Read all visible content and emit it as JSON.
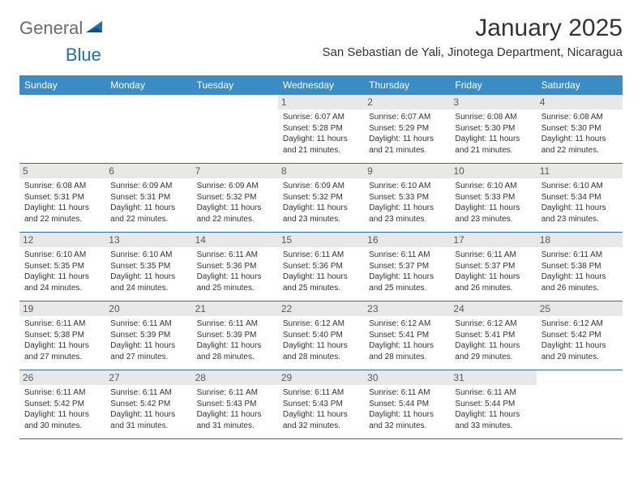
{
  "brand": {
    "part1": "General",
    "part2": "Blue"
  },
  "title": "January 2025",
  "location": "San Sebastian de Yali, Jinotega Department, Nicaragua",
  "dow": [
    "Sunday",
    "Monday",
    "Tuesday",
    "Wednesday",
    "Thursday",
    "Friday",
    "Saturday"
  ],
  "colors": {
    "header_bg": "#3b8bc4",
    "header_text": "#ffffff",
    "daynum_bg": "#e8e8e8",
    "rule": "#2f6ea0",
    "brand_gray": "#6b6b6b",
    "brand_blue": "#1f6fb2"
  },
  "weeks": [
    [
      null,
      null,
      null,
      {
        "n": "1",
        "sr": "6:07 AM",
        "ss": "5:28 PM",
        "dl": "11 hours and 21 minutes."
      },
      {
        "n": "2",
        "sr": "6:07 AM",
        "ss": "5:29 PM",
        "dl": "11 hours and 21 minutes."
      },
      {
        "n": "3",
        "sr": "6:08 AM",
        "ss": "5:30 PM",
        "dl": "11 hours and 21 minutes."
      },
      {
        "n": "4",
        "sr": "6:08 AM",
        "ss": "5:30 PM",
        "dl": "11 hours and 22 minutes."
      }
    ],
    [
      {
        "n": "5",
        "sr": "6:08 AM",
        "ss": "5:31 PM",
        "dl": "11 hours and 22 minutes."
      },
      {
        "n": "6",
        "sr": "6:09 AM",
        "ss": "5:31 PM",
        "dl": "11 hours and 22 minutes."
      },
      {
        "n": "7",
        "sr": "6:09 AM",
        "ss": "5:32 PM",
        "dl": "11 hours and 22 minutes."
      },
      {
        "n": "8",
        "sr": "6:09 AM",
        "ss": "5:32 PM",
        "dl": "11 hours and 23 minutes."
      },
      {
        "n": "9",
        "sr": "6:10 AM",
        "ss": "5:33 PM",
        "dl": "11 hours and 23 minutes."
      },
      {
        "n": "10",
        "sr": "6:10 AM",
        "ss": "5:33 PM",
        "dl": "11 hours and 23 minutes."
      },
      {
        "n": "11",
        "sr": "6:10 AM",
        "ss": "5:34 PM",
        "dl": "11 hours and 23 minutes."
      }
    ],
    [
      {
        "n": "12",
        "sr": "6:10 AM",
        "ss": "5:35 PM",
        "dl": "11 hours and 24 minutes."
      },
      {
        "n": "13",
        "sr": "6:10 AM",
        "ss": "5:35 PM",
        "dl": "11 hours and 24 minutes."
      },
      {
        "n": "14",
        "sr": "6:11 AM",
        "ss": "5:36 PM",
        "dl": "11 hours and 25 minutes."
      },
      {
        "n": "15",
        "sr": "6:11 AM",
        "ss": "5:36 PM",
        "dl": "11 hours and 25 minutes."
      },
      {
        "n": "16",
        "sr": "6:11 AM",
        "ss": "5:37 PM",
        "dl": "11 hours and 25 minutes."
      },
      {
        "n": "17",
        "sr": "6:11 AM",
        "ss": "5:37 PM",
        "dl": "11 hours and 26 minutes."
      },
      {
        "n": "18",
        "sr": "6:11 AM",
        "ss": "5:38 PM",
        "dl": "11 hours and 26 minutes."
      }
    ],
    [
      {
        "n": "19",
        "sr": "6:11 AM",
        "ss": "5:38 PM",
        "dl": "11 hours and 27 minutes."
      },
      {
        "n": "20",
        "sr": "6:11 AM",
        "ss": "5:39 PM",
        "dl": "11 hours and 27 minutes."
      },
      {
        "n": "21",
        "sr": "6:11 AM",
        "ss": "5:39 PM",
        "dl": "11 hours and 28 minutes."
      },
      {
        "n": "22",
        "sr": "6:12 AM",
        "ss": "5:40 PM",
        "dl": "11 hours and 28 minutes."
      },
      {
        "n": "23",
        "sr": "6:12 AM",
        "ss": "5:41 PM",
        "dl": "11 hours and 28 minutes."
      },
      {
        "n": "24",
        "sr": "6:12 AM",
        "ss": "5:41 PM",
        "dl": "11 hours and 29 minutes."
      },
      {
        "n": "25",
        "sr": "6:12 AM",
        "ss": "5:42 PM",
        "dl": "11 hours and 29 minutes."
      }
    ],
    [
      {
        "n": "26",
        "sr": "6:11 AM",
        "ss": "5:42 PM",
        "dl": "11 hours and 30 minutes."
      },
      {
        "n": "27",
        "sr": "6:11 AM",
        "ss": "5:42 PM",
        "dl": "11 hours and 31 minutes."
      },
      {
        "n": "28",
        "sr": "6:11 AM",
        "ss": "5:43 PM",
        "dl": "11 hours and 31 minutes."
      },
      {
        "n": "29",
        "sr": "6:11 AM",
        "ss": "5:43 PM",
        "dl": "11 hours and 32 minutes."
      },
      {
        "n": "30",
        "sr": "6:11 AM",
        "ss": "5:44 PM",
        "dl": "11 hours and 32 minutes."
      },
      {
        "n": "31",
        "sr": "6:11 AM",
        "ss": "5:44 PM",
        "dl": "11 hours and 33 minutes."
      },
      null
    ]
  ],
  "labels": {
    "sunrise": "Sunrise: ",
    "sunset": "Sunset: ",
    "daylight": "Daylight: "
  }
}
